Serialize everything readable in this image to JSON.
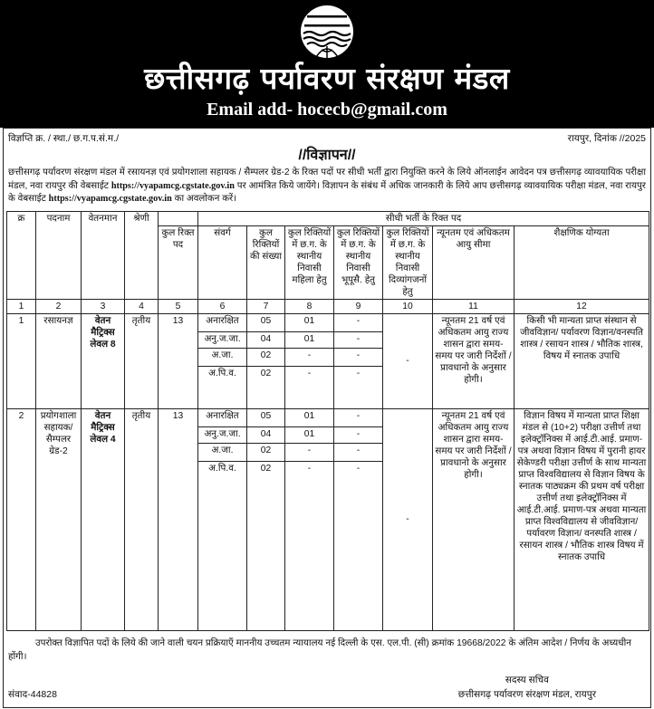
{
  "header": {
    "org_title": "छत्तीसगढ़ पर्यावरण संरक्षण मंडल",
    "email": "Email add- hocecb@gmail.com",
    "logo_icon": "pollution-control-board-logo"
  },
  "reference": {
    "number": "विज्ञप्ति क्र. / स्था./ छ.ग.प.सं.म./",
    "place_date": "रायपुर, दिनांक //2025"
  },
  "advertisement_title": "//विज्ञापन//",
  "intro": {
    "part1": "छत्तीसगढ़ पर्यावरण संरक्षण मंडल में रसायनज्ञ एवं प्रयोगशाला सहायक / सैम्पलर ग्रेड-2 के रिक्त पदों पर सीधी भर्ती द्वारा नियुक्ति करने के लिये ऑनलाईन आवेदन पत्र छत्तीसगढ़ व्यावयायिक परीक्षा मंडल, नवा रायपुर की वेबसाईट",
    "url1": "https://vyapamcg.cgstate.gov.in",
    "part2": "पर आमंत्रित किये जायेंगे। विज्ञापन के संबंध में अधिक जानकारी के लिये आप छत्तीसगढ़ व्यावयायिक परीक्षा मंडल, नवा रायपुर के वेबसाईट",
    "url2": "https://vyapamcg.cgstate.gov.in",
    "part3": "का अवलोकन करें।"
  },
  "table": {
    "headers": {
      "sr": "क्र",
      "post": "पदनाम",
      "pay": "वेतनमान",
      "class": "श्रेणी",
      "group": "सीधी भर्ती के रिक्त पद",
      "total_vacant": "कुल रिक्त पद",
      "category": "संवर्ग",
      "total_count": "कुल रिक्तियों की संख्या",
      "women": "कुल रिक्तियों में छ.ग. के स्थानीय निवासी महिला हेतु",
      "ex_servicemen": "कुल रिक्तियों में छ.ग. के स्थानीय निवासी भूपूसै. हेतु",
      "disabled": "कुल रिक्तियों में छ.ग. के स्थानीय निवासी दिव्यांगजनों हेतु",
      "age": "न्यूनतम एवं अधिकतम आयु सीमा",
      "qualification": "शैक्षणिक योग्यता"
    },
    "column_numbers": [
      "1",
      "2",
      "3",
      "4",
      "5",
      "6",
      "7",
      "8",
      "9",
      "10",
      "11",
      "12"
    ],
    "rows": [
      {
        "sr": "1",
        "post": "रसायनज्ञ",
        "pay": "वेतन मैट्रिक्स लेवल 8",
        "class": "तृतीय",
        "total_vacant": "13",
        "disabled": "-",
        "age": "न्यूनतम 21 वर्ष एवं अधिकतम आयु राज्य शासन द्वारा समय-समय पर जारी निर्देशों / प्रावधानो के अनुसार होगी।",
        "qualification": "किसी भी मान्यता प्राप्त संस्थान से जीवविज्ञान/ पर्यावरण विज्ञान/वनस्पति शास्त्र / रसायन शास्त्र / भौतिक शास्त्र, विषय में स्नातक उपाधि",
        "categories": [
          {
            "name": "अनारक्षित",
            "count": "05",
            "women": "01",
            "ex_servicemen": "-"
          },
          {
            "name": "अनु.ज.जा.",
            "count": "04",
            "women": "01",
            "ex_servicemen": "-"
          },
          {
            "name": "अ.जा.",
            "count": "02",
            "women": "-",
            "ex_servicemen": "-"
          },
          {
            "name": "अ.पि.व.",
            "count": "02",
            "women": "-",
            "ex_servicemen": "-"
          }
        ]
      },
      {
        "sr": "2",
        "post": "प्रयोगशाला सहायक/ सैम्पलर ग्रेड-2",
        "pay": "वेतन मैट्रिक्स लेवल 4",
        "class": "तृतीय",
        "total_vacant": "13",
        "disabled": "-",
        "age": "न्यूनतम 21 वर्ष एवं अधिकतम आयु राज्य शासन द्वारा समय-समय पर जारी निर्देशों / प्रावधानो के अनुसार होगी।",
        "qualification": "विज्ञान विषय में मान्यता प्राप्त शिक्षा मंडल से (10+2) परीक्षा उत्तीर्ण तथा इलेक्ट्रॉनिक्स में आई.टी.आई. प्रमाण-पत्र अथवा विज्ञान विषय में पुरानी हायर सेकेण्डरी परीक्षा उत्तीर्ण के साथ मान्यता प्राप्त विश्वविद्यालय से विज्ञान विषय के स्नातक पाठ्यक्रम की प्रथम वर्ष परीक्षा उत्तीर्ण तथा इलेक्ट्रॉनिक्स में आई.टी.आई. प्रमाण-पत्र अथवा मान्यता प्राप्त विश्वविद्यालय से जीवविज्ञान/पर्यावरण विज्ञान/ वनस्पति शास्त्र / रसायन शास्त्र / भौतिक शास्त्र विषय में स्नातक उपाधि",
        "categories": [
          {
            "name": "अनारक्षित",
            "count": "05",
            "women": "01",
            "ex_servicemen": "-"
          },
          {
            "name": "अनु.ज.जा.",
            "count": "04",
            "women": "01",
            "ex_servicemen": "-"
          },
          {
            "name": "अ.जा.",
            "count": "02",
            "women": "-",
            "ex_servicemen": "-"
          },
          {
            "name": "अ.पि.व.",
            "count": "02",
            "women": "-",
            "ex_servicemen": "-"
          }
        ]
      }
    ]
  },
  "footer": {
    "note": "उपरोक्त विज्ञापित पदों के लिये की जाने वाली चयन प्रक्रियाएँ माननीय उच्चतम न्यायालय नई दिल्ली के एस. एल.पी. (सी) क्रमांक 19668/2022 के अंतिम आदेश / निर्णय के अध्यधीन होंगी।",
    "signer_title": "सदस्य सचिव",
    "signer_org": "छत्तीसगढ़ पर्यावरण संरक्षण मंडल, रायपुर",
    "samvad": "संवाद-44828"
  }
}
